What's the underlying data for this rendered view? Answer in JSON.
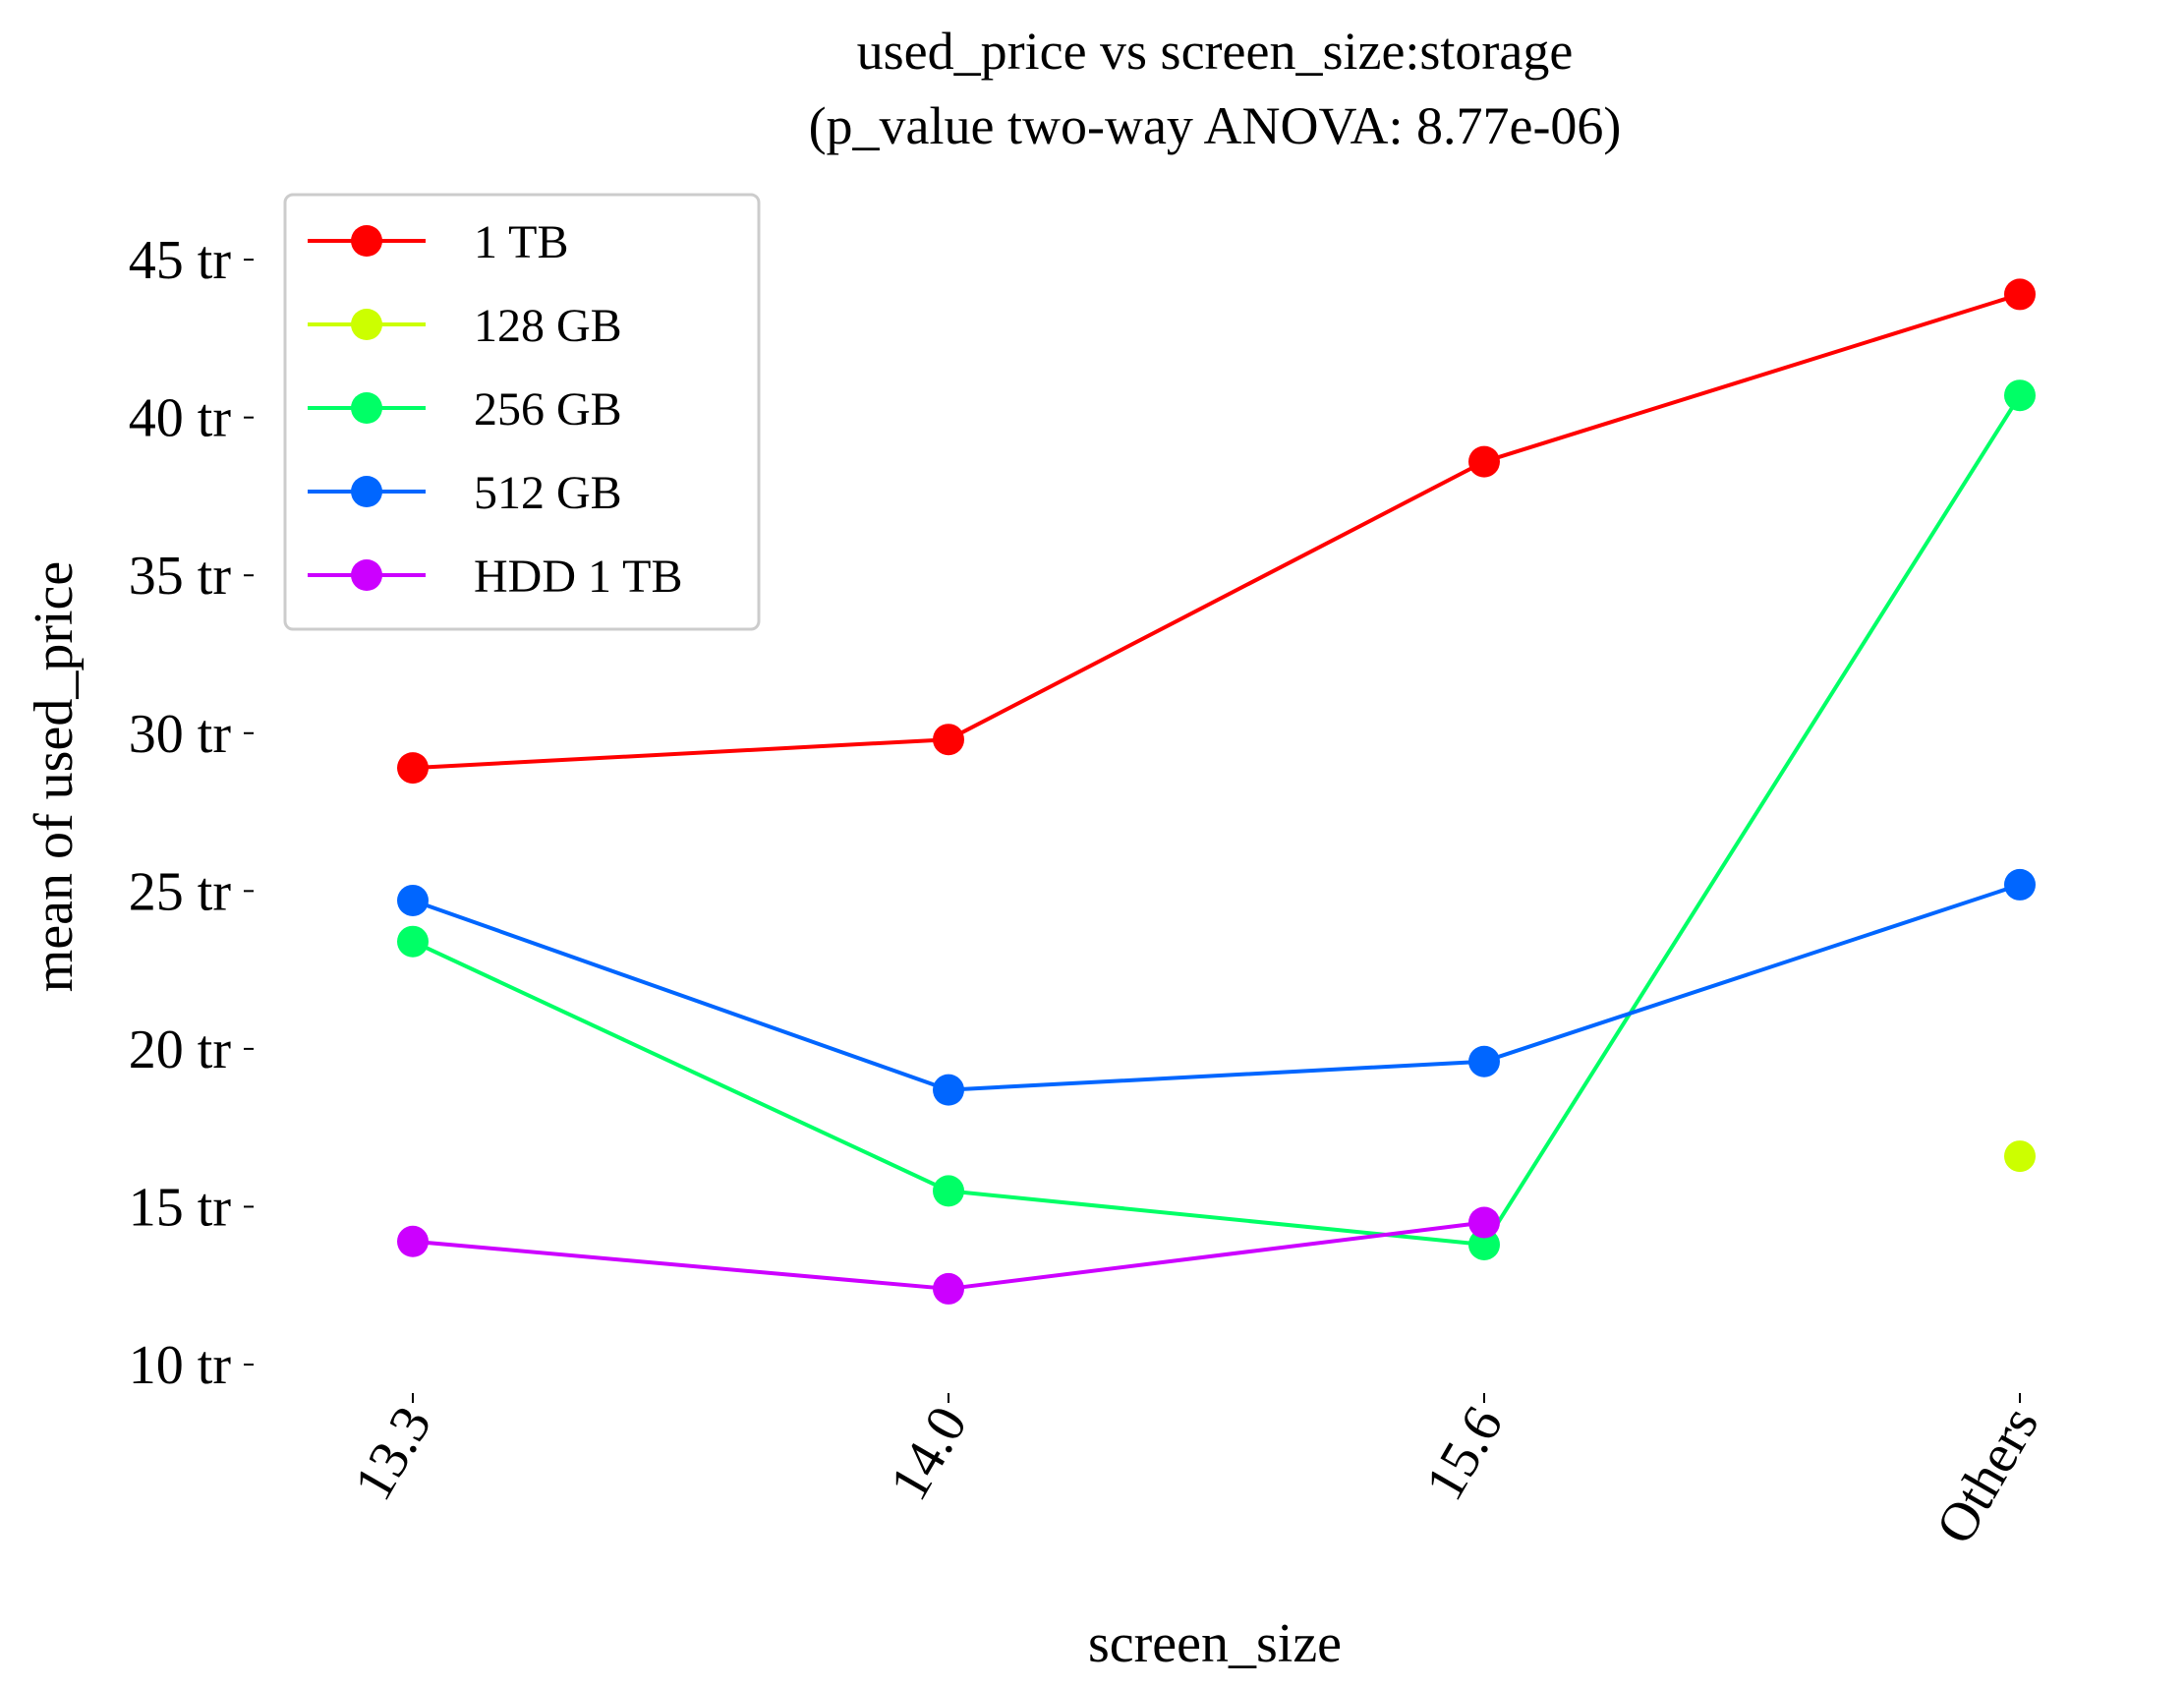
{
  "chart_data": {
    "type": "line",
    "title": "used_price vs screen_size:storage",
    "subtitle": "(p_value two-way ANOVA: 8.77e-06)",
    "xlabel": "screen_size",
    "ylabel": "mean of used_price",
    "categories": [
      "13.3",
      "14.0",
      "15.6",
      "Others"
    ],
    "ylim": [
      10,
      46
    ],
    "yticks": [
      {
        "value": 10,
        "label": "10 tr"
      },
      {
        "value": 15,
        "label": "15 tr"
      },
      {
        "value": 20,
        "label": "20 tr"
      },
      {
        "value": 25,
        "label": "25 tr"
      },
      {
        "value": 30,
        "label": "30 tr"
      },
      {
        "value": 35,
        "label": "35 tr"
      },
      {
        "value": 40,
        "label": "40 tr"
      },
      {
        "value": 45,
        "label": "45 tr"
      }
    ],
    "grid": false,
    "legend_position": "top-left",
    "series": [
      {
        "name": "1 TB",
        "color": "#ff0000",
        "values": [
          28.9,
          29.8,
          38.6,
          43.9
        ]
      },
      {
        "name": "128 GB",
        "color": "#ccff00",
        "values": [
          null,
          null,
          null,
          16.6
        ]
      },
      {
        "name": "256 GB",
        "color": "#00ff66",
        "values": [
          23.4,
          15.5,
          13.8,
          40.7
        ]
      },
      {
        "name": "512 GB",
        "color": "#0066ff",
        "values": [
          24.7,
          18.7,
          19.6,
          25.2
        ]
      },
      {
        "name": "HDD 1 TB",
        "color": "#cc00ff",
        "values": [
          13.9,
          12.4,
          14.5,
          null
        ]
      }
    ]
  }
}
